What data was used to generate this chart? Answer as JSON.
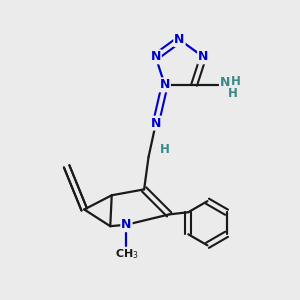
{
  "background_color": "#ebebeb",
  "bond_color": "#1a1a1a",
  "n_color": "#0000cc",
  "nh_color": "#3a8888",
  "figsize": [
    3.0,
    3.0
  ],
  "dpi": 100,
  "xlim": [
    0,
    10
  ],
  "ylim": [
    0,
    10
  ]
}
